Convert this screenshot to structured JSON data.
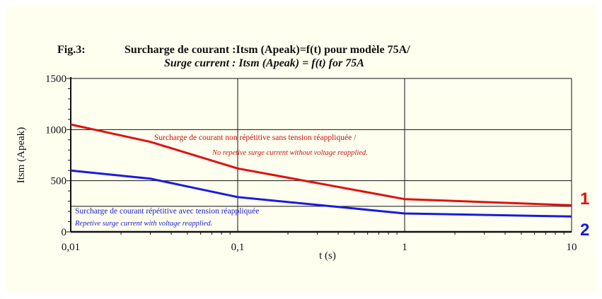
{
  "figure_label": "Fig.3:",
  "title_line1": "Surcharge de courant :Itsm (Apeak)=f(t) pour modèle 75A/",
  "title_line2": "Surge current  : Itsm (Apeak) = f(t)  for 75A",
  "chart_data": {
    "type": "line",
    "xscale": "log",
    "xlim": [
      0.01,
      10
    ],
    "ylim": [
      0,
      1500
    ],
    "xticks": [
      0.01,
      0.1,
      1,
      10
    ],
    "xtick_labels": [
      "0,01",
      "0,1",
      "1",
      "10"
    ],
    "yticks": [
      0,
      500,
      1000,
      1500
    ],
    "ytick_labels": [
      "0",
      "500",
      "1000",
      "1500"
    ],
    "xlabel": "t (s)",
    "ylabel": "Itsm (Apeak)",
    "grid": true,
    "series": [
      {
        "name": "1",
        "color": "#e01010",
        "label_fr": "Surcharge de courant non répétitive sans tension réappliquée /",
        "label_en": "No repetive surge current without voltage reapplied.",
        "x": [
          0.01,
          0.03,
          0.1,
          1,
          10
        ],
        "y": [
          1050,
          880,
          620,
          320,
          260
        ]
      },
      {
        "name": "2",
        "color": "#1a1ae0",
        "label_fr": "Surcharge de courant répétitive avec tension réappliquée",
        "label_en": "Repetive surge current with voltage reapplied.",
        "x": [
          0.01,
          0.03,
          0.1,
          1,
          10
        ],
        "y": [
          600,
          520,
          340,
          180,
          150
        ]
      }
    ]
  }
}
